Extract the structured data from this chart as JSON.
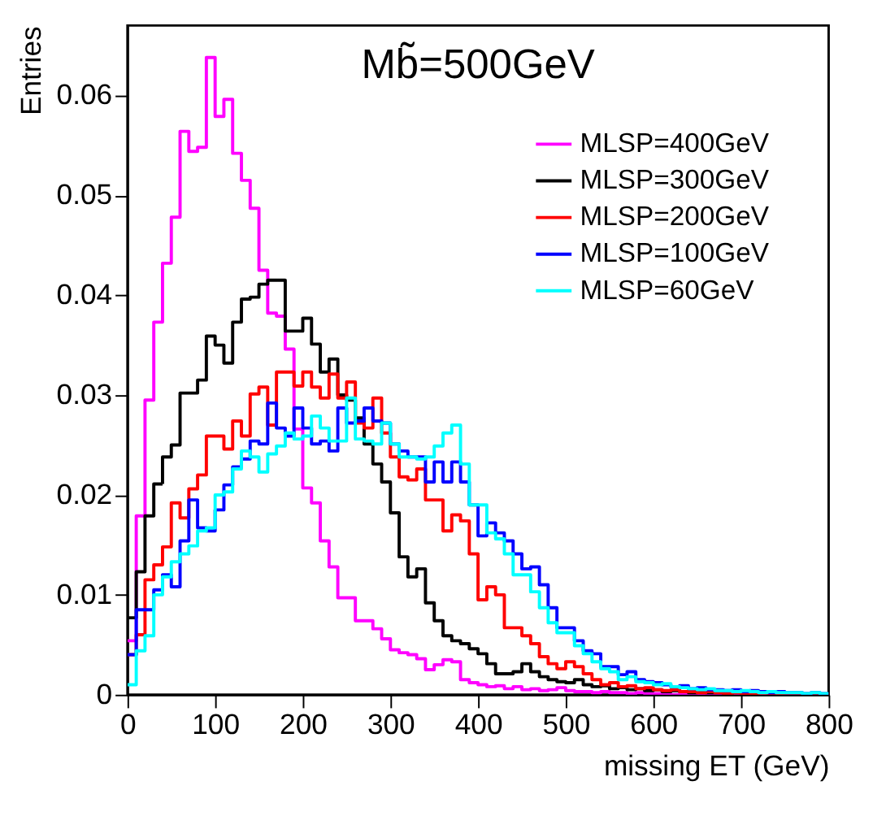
{
  "chart_data": {
    "type": "histogram",
    "xlabel": "missing ET (GeV)",
    "ylabel": "Entries",
    "annotations": [
      "Mb̃=500GeV"
    ],
    "bins": [
      0,
      10,
      20,
      30,
      40,
      50,
      60,
      70,
      80,
      90,
      100,
      110,
      120,
      130,
      140,
      150,
      160,
      170,
      180,
      190,
      200,
      210,
      220,
      230,
      240,
      250,
      260,
      270,
      280,
      290,
      300,
      310,
      320,
      330,
      340,
      350,
      360,
      370,
      380,
      390,
      400,
      410,
      420,
      430,
      440,
      450,
      460,
      470,
      480,
      490,
      500,
      510,
      520,
      530,
      540,
      550,
      560,
      570,
      580,
      590,
      600,
      610,
      620,
      630,
      640,
      650,
      660,
      670,
      680,
      690,
      700,
      710,
      720,
      730,
      740,
      750,
      760,
      770,
      780,
      790,
      800
    ],
    "series": [
      {
        "name": "MLSP=400GeV",
        "color": "#ff00ff",
        "values": [
          0.0054,
          0.0179,
          0.0295,
          0.0373,
          0.0432,
          0.0478,
          0.0564,
          0.0544,
          0.0548,
          0.0638,
          0.0579,
          0.0596,
          0.0542,
          0.0515,
          0.0487,
          0.0425,
          0.0382,
          0.0379,
          0.0346,
          0.0266,
          0.0207,
          0.0192,
          0.0154,
          0.0128,
          0.0097,
          0.0097,
          0.0074,
          0.0074,
          0.0066,
          0.0056,
          0.0045,
          0.0042,
          0.004,
          0.0036,
          0.0025,
          0.003,
          0.0035,
          0.0033,
          0.0015,
          0.0012,
          0.001,
          0.0008,
          0.0009,
          0.0006,
          0.0008,
          0.0005,
          0.0006,
          0.0004,
          0.0005,
          0.0007,
          0.0004,
          0.0003,
          0.0003,
          0.0002,
          0.0003,
          0.0002,
          0.0002,
          0.0001,
          0.0002,
          0.0001,
          0.0001,
          0.0001,
          0,
          0.0001,
          0,
          0,
          0,
          0,
          0,
          0,
          0,
          0,
          0,
          0,
          0,
          0,
          0,
          0,
          0,
          0
        ]
      },
      {
        "name": "MLSP=300GeV",
        "color": "#000000",
        "values": [
          0.0077,
          0.0123,
          0.0179,
          0.0211,
          0.0238,
          0.025,
          0.0302,
          0.0302,
          0.0315,
          0.0359,
          0.035,
          0.0332,
          0.0373,
          0.0396,
          0.0398,
          0.0411,
          0.0415,
          0.0415,
          0.0364,
          0.0364,
          0.0377,
          0.0351,
          0.0323,
          0.0336,
          0.03,
          0.0295,
          0.0277,
          0.0251,
          0.0231,
          0.0213,
          0.0182,
          0.0138,
          0.0118,
          0.0126,
          0.0092,
          0.0074,
          0.0059,
          0.0054,
          0.0051,
          0.0046,
          0.0041,
          0.0031,
          0.0021,
          0.0021,
          0.0023,
          0.0031,
          0.0023,
          0.0018,
          0.0015,
          0.0013,
          0.0012,
          0.0015,
          0.001,
          0.0008,
          0.0009,
          0.0006,
          0.0007,
          0.0005,
          0.0006,
          0.0004,
          0.0005,
          0.0003,
          0.0004,
          0.0003,
          0.0002,
          0.0003,
          0.0002,
          0.0002,
          0.0001,
          0.0002,
          0.0001,
          0.0001,
          0.0002,
          0.0001,
          0,
          0.0001,
          0,
          0,
          0,
          0
        ]
      },
      {
        "name": "MLSP=200GeV",
        "color": "#ff0000",
        "values": [
          0.004,
          0.006,
          0.0115,
          0.013,
          0.0148,
          0.0192,
          0.0177,
          0.0206,
          0.022,
          0.0259,
          0.0259,
          0.0246,
          0.0274,
          0.0259,
          0.0301,
          0.0308,
          0.027,
          0.0323,
          0.0323,
          0.0309,
          0.0323,
          0.0308,
          0.0297,
          0.0321,
          0.0297,
          0.0313,
          0.0272,
          0.0267,
          0.0297,
          0.0262,
          0.0238,
          0.0218,
          0.0215,
          0.0226,
          0.0195,
          0.0195,
          0.0164,
          0.018,
          0.0174,
          0.0141,
          0.0095,
          0.0108,
          0.01,
          0.0067,
          0.0067,
          0.0059,
          0.0051,
          0.0038,
          0.0031,
          0.0026,
          0.0033,
          0.0028,
          0.0021,
          0.0015,
          0.001,
          0.0012,
          0.0008,
          0.0009,
          0.0006,
          0.0007,
          0.0005,
          0.0004,
          0.0005,
          0.0003,
          0.0003,
          0.0002,
          0.0003,
          0.0002,
          0.0001,
          0.0002,
          0.0001,
          0.0001,
          0.0001,
          0,
          0.0001,
          0,
          0,
          0,
          0,
          0
        ]
      },
      {
        "name": "MLSP=100GeV",
        "color": "#0000ff",
        "values": [
          0.004,
          0.0085,
          0.0085,
          0.0105,
          0.012,
          0.0108,
          0.0154,
          0.0195,
          0.0167,
          0.0164,
          0.0185,
          0.021,
          0.0228,
          0.0236,
          0.0254,
          0.0251,
          0.0292,
          0.0267,
          0.0259,
          0.0287,
          0.0267,
          0.0251,
          0.0254,
          0.0244,
          0.0287,
          0.0272,
          0.0274,
          0.0287,
          0.0274,
          0.0272,
          0.0251,
          0.0244,
          0.0238,
          0.0238,
          0.0213,
          0.0233,
          0.0213,
          0.0233,
          0.0213,
          0.019,
          0.0159,
          0.0172,
          0.0162,
          0.0154,
          0.0141,
          0.0126,
          0.0128,
          0.011,
          0.0087,
          0.0067,
          0.0067,
          0.0054,
          0.0044,
          0.0041,
          0.0028,
          0.0028,
          0.002,
          0.0023,
          0.0015,
          0.0013,
          0.0012,
          0.001,
          0.0008,
          0.0009,
          0.0006,
          0.0007,
          0.0005,
          0.0005,
          0.0004,
          0.0005,
          0.0003,
          0.0004,
          0.0003,
          0.0002,
          0.0003,
          0.0002,
          0.0002,
          0.0001,
          0.0002,
          0.0001
        ]
      },
      {
        "name": "MLSP=60GeV",
        "color": "#00ffff",
        "values": [
          0.001,
          0.0044,
          0.0059,
          0.01,
          0.0118,
          0.0133,
          0.0141,
          0.0149,
          0.0164,
          0.0167,
          0.02,
          0.0203,
          0.0226,
          0.0244,
          0.0238,
          0.0223,
          0.0241,
          0.0249,
          0.0262,
          0.0256,
          0.0259,
          0.0279,
          0.0267,
          0.0254,
          0.0254,
          0.0297,
          0.0256,
          0.0254,
          0.0251,
          0.0272,
          0.0251,
          0.0238,
          0.0238,
          0.0236,
          0.0238,
          0.0249,
          0.0262,
          0.027,
          0.0231,
          0.019,
          0.019,
          0.0162,
          0.0156,
          0.0141,
          0.012,
          0.012,
          0.0103,
          0.0087,
          0.0072,
          0.0062,
          0.0062,
          0.0049,
          0.0041,
          0.0033,
          0.0026,
          0.0023,
          0.0015,
          0.0018,
          0.0013,
          0.0012,
          0.001,
          0.0011,
          0.0008,
          0.0007,
          0.0006,
          0.0005,
          0.0006,
          0.0004,
          0.0004,
          0.0003,
          0.0004,
          0.0003,
          0.0002,
          0.0003,
          0.0002,
          0.0002,
          0.0002,
          0.0001,
          0.0002,
          0.0001
        ]
      }
    ],
    "xlim": [
      0,
      800
    ],
    "xticks": [
      0,
      100,
      200,
      300,
      400,
      500,
      600,
      700,
      800
    ],
    "ylim": [
      0,
      0.067
    ],
    "yticks": [
      0,
      0.01,
      0.02,
      0.03,
      0.04,
      0.05,
      0.06
    ],
    "grid": false,
    "legend": "top right",
    "line_style": "solid"
  }
}
